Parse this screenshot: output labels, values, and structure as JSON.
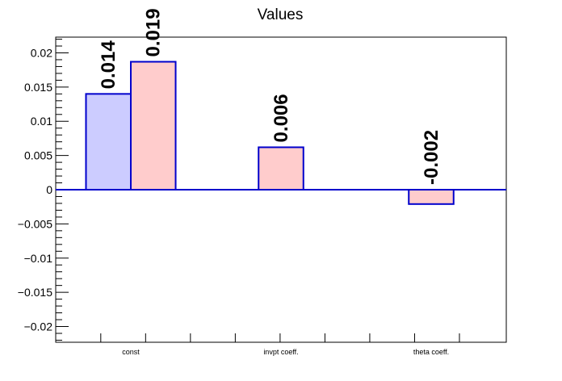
{
  "chart_data": {
    "type": "bar",
    "title": "Values",
    "xlabel": "",
    "ylabel": "",
    "categories": [
      "const",
      "invpt coeff.",
      "theta coeff."
    ],
    "series": [
      {
        "color_fill": "#ccccff",
        "color_edge": "#0000cc",
        "values": [
          0.014,
          null,
          null
        ]
      },
      {
        "color_fill": "#ffcccc",
        "color_edge": "#0000cc",
        "values": [
          0.0187,
          0.0062,
          -0.0021
        ]
      }
    ],
    "data_labels": [
      {
        "series": 0,
        "category": 0,
        "text": "0.014"
      },
      {
        "series": 1,
        "category": 0,
        "text": "0.019"
      },
      {
        "series": 1,
        "category": 1,
        "text": "0.006"
      },
      {
        "series": 1,
        "category": 2,
        "text": "-0.002"
      }
    ],
    "ylim": [
      -0.0223,
      0.0223
    ],
    "yticks": [
      {
        "value": 0.02,
        "label": "0.02"
      },
      {
        "value": 0.015,
        "label": "0.015"
      },
      {
        "value": 0.01,
        "label": "0.01"
      },
      {
        "value": 0.005,
        "label": "0.005"
      },
      {
        "value": 0,
        "label": "0"
      },
      {
        "value": -0.005,
        "label": "−0.005"
      },
      {
        "value": -0.01,
        "label": "−0.01"
      },
      {
        "value": -0.015,
        "label": "−0.015"
      },
      {
        "value": -0.02,
        "label": "−0.02"
      }
    ],
    "zero_line_color": "#0000cc",
    "grid": false,
    "legend": "none"
  }
}
